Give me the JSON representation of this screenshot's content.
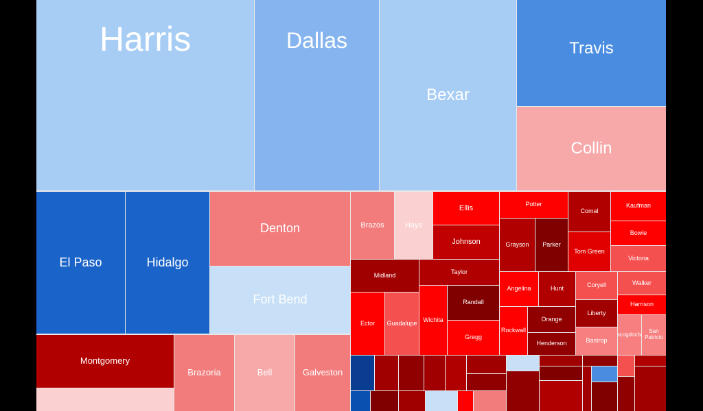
{
  "tiles": [
    {
      "label": "Harris"
    },
    {
      "label": "Dallas"
    },
    {
      "label": "Bexar"
    },
    {
      "label": "Travis"
    },
    {
      "label": "Collin"
    },
    {
      "label": "El Paso"
    },
    {
      "label": "Hidalgo"
    },
    {
      "label": "Denton"
    },
    {
      "label": "Fort Bend"
    },
    {
      "label": "Montgomery"
    },
    {
      "label": "Brazoria"
    },
    {
      "label": "Bell"
    },
    {
      "label": "Galveston"
    },
    {
      "label": "Brazos"
    },
    {
      "label": "Hays"
    },
    {
      "label": "Ellis"
    },
    {
      "label": "Johnson"
    },
    {
      "label": "Potter"
    },
    {
      "label": "Comal"
    },
    {
      "label": "Kaufman"
    },
    {
      "label": "Bowie"
    },
    {
      "label": "Grayson"
    },
    {
      "label": "Parker"
    },
    {
      "label": "Tom Green"
    },
    {
      "label": "Victoria"
    },
    {
      "label": "Midland"
    },
    {
      "label": "Taylor"
    },
    {
      "label": "Ector"
    },
    {
      "label": "Guadalupe"
    },
    {
      "label": "Wichita"
    },
    {
      "label": "Randall"
    },
    {
      "label": "Gregg"
    },
    {
      "label": "Angelina"
    },
    {
      "label": "Hunt"
    },
    {
      "label": "Rockwall"
    },
    {
      "label": "Orange"
    },
    {
      "label": "Henderson"
    },
    {
      "label": "Coryell"
    },
    {
      "label": "Walker"
    },
    {
      "label": "Liberty"
    },
    {
      "label": "Harrison"
    },
    {
      "label": "Bastrop"
    },
    {
      "label": "Nacogdoches"
    },
    {
      "label": "San Patricio"
    }
  ]
}
